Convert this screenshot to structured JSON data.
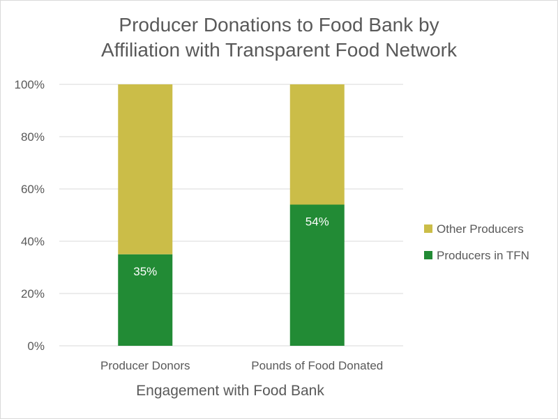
{
  "chart_data": {
    "type": "bar",
    "stacked": true,
    "percent": true,
    "title_lines": [
      "Producer Donations to Food Bank by",
      "Affiliation with Transparent Food Network"
    ],
    "xlabel": "Engagement with Food Bank",
    "ylabel": "",
    "ylim": [
      0,
      100
    ],
    "yticks": [
      "0%",
      "20%",
      "40%",
      "60%",
      "80%",
      "100%"
    ],
    "categories": [
      "Producer Donors",
      "Pounds of Food Donated"
    ],
    "series": [
      {
        "name": "Producers in TFN",
        "values": [
          35,
          54
        ],
        "labels": [
          "35%",
          "54%"
        ],
        "color": "#228b35"
      },
      {
        "name": "Other Producers",
        "values": [
          65,
          46
        ],
        "color": "#cbbd48"
      }
    ],
    "legend_position": "right",
    "grid": true
  }
}
